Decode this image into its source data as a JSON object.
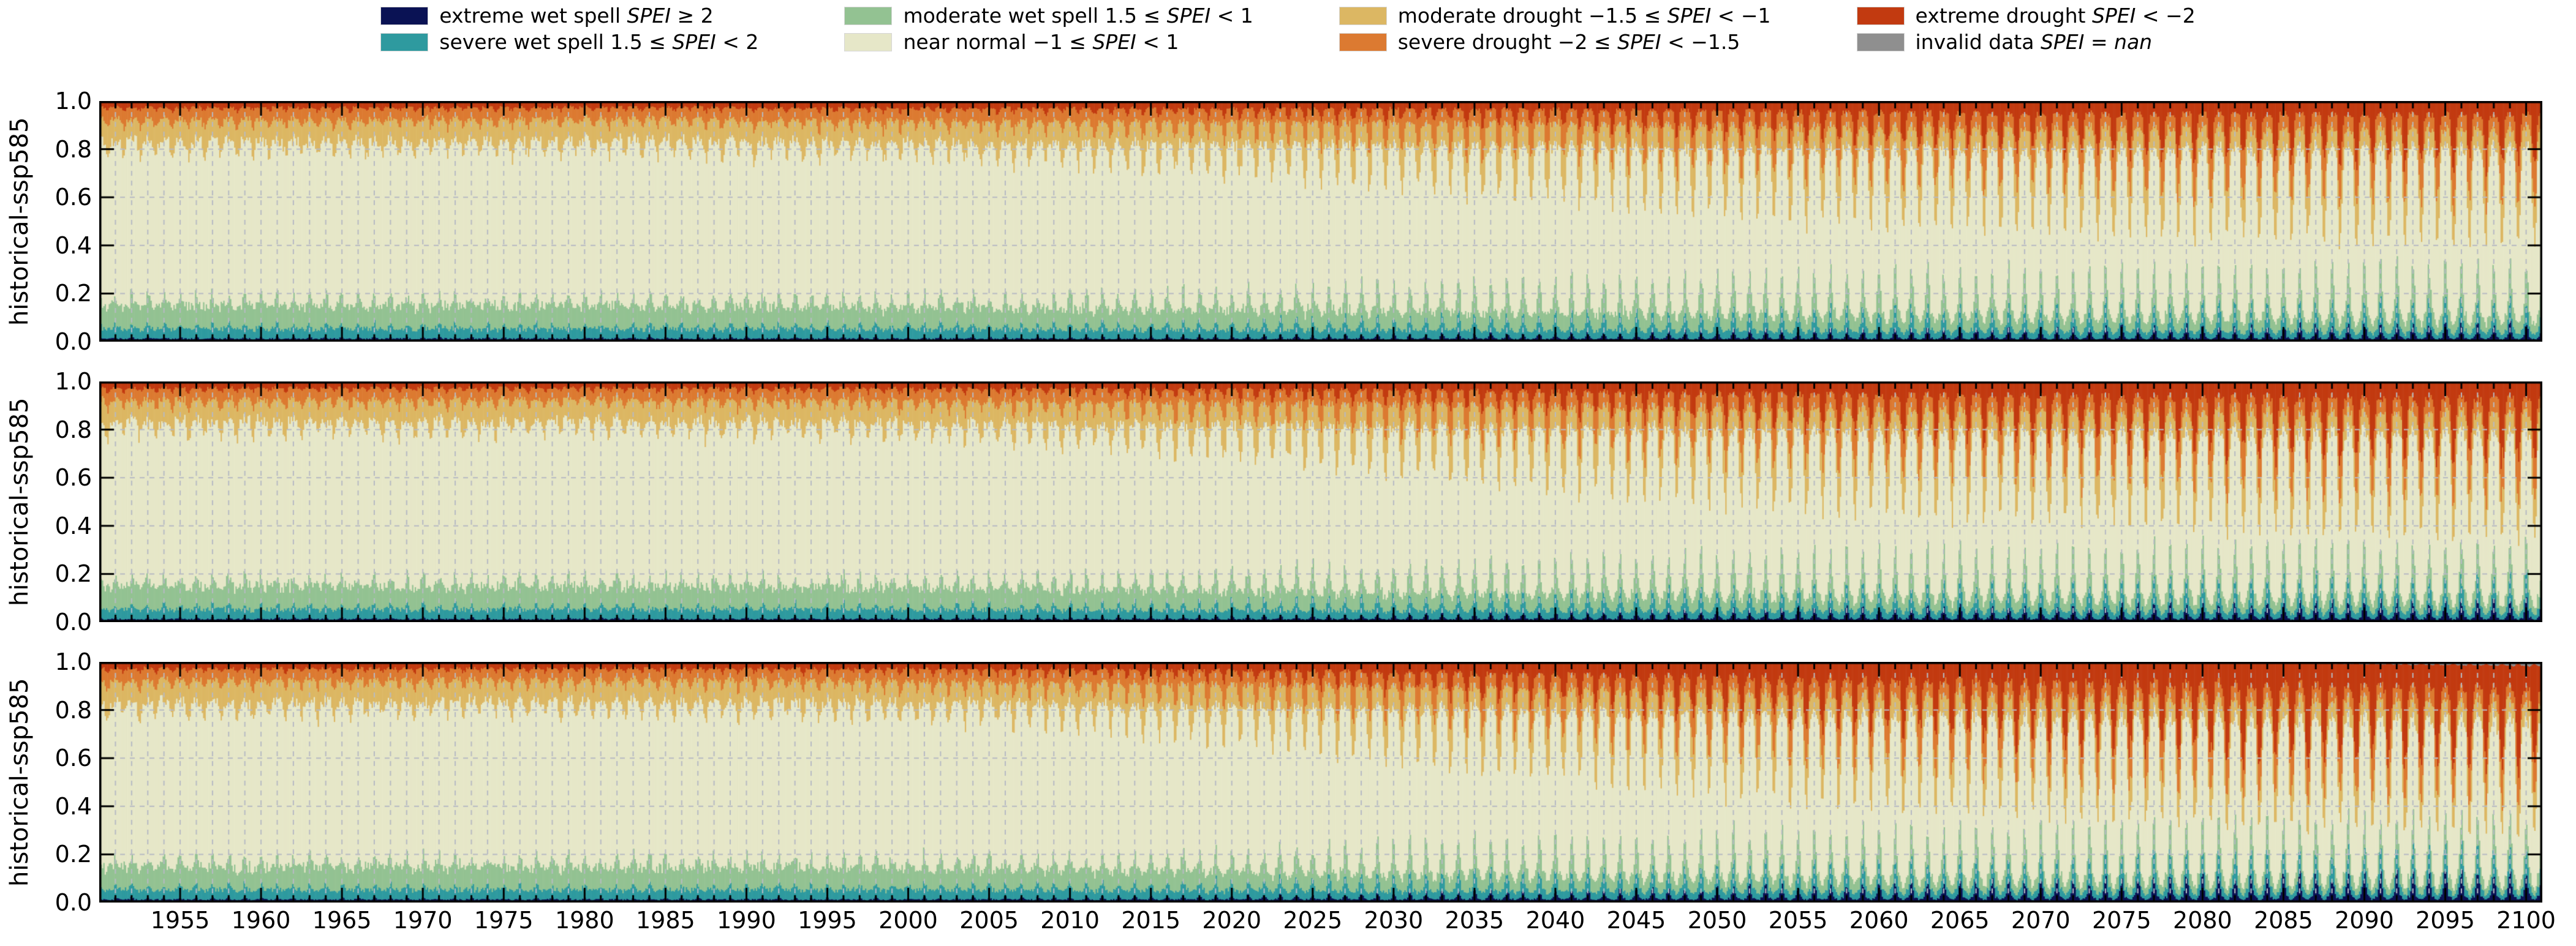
{
  "legend": {
    "items": [
      {
        "id": "extreme-wet-spell",
        "color": "#0a1254",
        "segments": [
          {
            "t": "extreme wet spell "
          },
          {
            "t": "SPEI",
            "i": true
          },
          {
            "t": " ≥ 2"
          }
        ]
      },
      {
        "id": "severe-wet-spell",
        "color": "#2e9a9f",
        "segments": [
          {
            "t": "severe wet spell 1.5 ≤ "
          },
          {
            "t": "SPEI",
            "i": true
          },
          {
            "t": " < 2"
          }
        ]
      },
      {
        "id": "moderate-wet-spell",
        "color": "#93c292",
        "segments": [
          {
            "t": "moderate wet spell 1.5 ≤ "
          },
          {
            "t": "SPEI",
            "i": true
          },
          {
            "t": " < 1"
          }
        ]
      },
      {
        "id": "near-normal",
        "color": "#e6e7c8",
        "segments": [
          {
            "t": "near normal −1 ≤ "
          },
          {
            "t": "SPEI",
            "i": true
          },
          {
            "t": " < 1"
          }
        ]
      },
      {
        "id": "moderate-drought",
        "color": "#dcb763",
        "segments": [
          {
            "t": "moderate drought −1.5 ≤ "
          },
          {
            "t": "SPEI",
            "i": true
          },
          {
            "t": " < −1"
          }
        ]
      },
      {
        "id": "severe-drought",
        "color": "#dc7a31",
        "segments": [
          {
            "t": "severe drought −2 ≤ "
          },
          {
            "t": "SPEI",
            "i": true
          },
          {
            "t": " < −1.5"
          }
        ]
      },
      {
        "id": "extreme-drought",
        "color": "#c23a10",
        "segments": [
          {
            "t": "extreme drought "
          },
          {
            "t": "SPEI",
            "i": true
          },
          {
            "t": " < −2"
          }
        ]
      },
      {
        "id": "invalid-data",
        "color": "#8f8f8f",
        "segments": [
          {
            "t": "invalid data "
          },
          {
            "t": "SPEI",
            "i": true
          },
          {
            "t": " = "
          },
          {
            "t": "nan",
            "i": true
          }
        ]
      }
    ]
  },
  "axes": {
    "ylabel": "historical-ssp585",
    "ytick_labels": [
      "0.0",
      "0.2",
      "0.4",
      "0.6",
      "0.8",
      "1.0"
    ],
    "xtick_labels": [
      "1955",
      "1960",
      "1965",
      "1970",
      "1975",
      "1980",
      "1985",
      "1990",
      "1995",
      "2000",
      "2005",
      "2010",
      "2015",
      "2020",
      "2025",
      "2030",
      "2035",
      "2040",
      "2045",
      "2050",
      "2055",
      "2060",
      "2065",
      "2070",
      "2075",
      "2080",
      "2085",
      "2090",
      "2095",
      "2100"
    ],
    "x_range": [
      1950,
      2101
    ],
    "y_range": [
      0,
      1
    ],
    "grid_color": "#b7bac3",
    "spine_color": "#000000"
  },
  "chart_data": {
    "type": "area",
    "stacked": true,
    "normalized": true,
    "x_unit": "year",
    "samples_per_year": 12,
    "grid": "on",
    "legend_position": "top",
    "categories": [
      {
        "name": "extreme wet spell",
        "color": "#0a1254"
      },
      {
        "name": "severe wet spell",
        "color": "#2e9a9f"
      },
      {
        "name": "moderate wet spell",
        "color": "#93c292"
      },
      {
        "name": "near normal",
        "color": "#e6e7c8"
      },
      {
        "name": "moderate drought",
        "color": "#dcb763"
      },
      {
        "name": "severe drought",
        "color": "#dc7a31"
      },
      {
        "name": "extreme drought",
        "color": "#c23a10"
      },
      {
        "name": "invalid data",
        "color": "#8f8f8f"
      }
    ],
    "keyframe_years": [
      1950,
      1980,
      2000,
      2010,
      2020,
      2030,
      2040,
      2050,
      2060,
      2070,
      2080,
      2090,
      2100
    ],
    "panels": [
      {
        "label": "historical-ssp585",
        "seasonal_amplitude": [
          0.22,
          0.22,
          0.25,
          0.3,
          0.4,
          0.52,
          0.62,
          0.7,
          0.76,
          0.8,
          0.84,
          0.87,
          0.9
        ],
        "series": [
          {
            "name": "extreme wet spell",
            "values": [
              0.015,
              0.015,
              0.015,
              0.015,
              0.016,
              0.018,
              0.02,
              0.022,
              0.024,
              0.026,
              0.028,
              0.03,
              0.032
            ]
          },
          {
            "name": "severe wet spell",
            "values": [
              0.045,
              0.045,
              0.045,
              0.045,
              0.046,
              0.048,
              0.05,
              0.05,
              0.05,
              0.05,
              0.05,
              0.05,
              0.05
            ]
          },
          {
            "name": "moderate wet spell",
            "values": [
              0.105,
              0.105,
              0.1,
              0.1,
              0.1,
              0.1,
              0.1,
              0.098,
              0.095,
              0.092,
              0.09,
              0.088,
              0.085
            ]
          },
          {
            "name": "near normal",
            "values": [
              0.65,
              0.655,
              0.65,
              0.64,
              0.62,
              0.6,
              0.575,
              0.55,
              0.53,
              0.515,
              0.505,
              0.498,
              0.49
            ]
          },
          {
            "name": "moderate drought",
            "values": [
              0.1,
              0.1,
              0.1,
              0.105,
              0.11,
              0.115,
              0.12,
              0.122,
              0.122,
              0.12,
              0.118,
              0.116,
              0.115
            ]
          },
          {
            "name": "severe drought",
            "values": [
              0.055,
              0.053,
              0.058,
              0.062,
              0.068,
              0.075,
              0.082,
              0.09,
              0.095,
              0.098,
              0.1,
              0.1,
              0.1
            ]
          },
          {
            "name": "extreme drought",
            "values": [
              0.03,
              0.027,
              0.032,
              0.033,
              0.04,
              0.044,
              0.053,
              0.068,
              0.084,
              0.099,
              0.109,
              0.118,
              0.128
            ]
          },
          {
            "name": "invalid data",
            "values": [
              0,
              0,
              0,
              0,
              0,
              0,
              0,
              0,
              0,
              0,
              0,
              0,
              0
            ]
          }
        ]
      },
      {
        "label": "historical-ssp585",
        "seasonal_amplitude": [
          0.22,
          0.22,
          0.25,
          0.31,
          0.42,
          0.55,
          0.65,
          0.73,
          0.79,
          0.83,
          0.87,
          0.9,
          0.92
        ],
        "series": [
          {
            "name": "extreme wet spell",
            "values": [
              0.015,
              0.015,
              0.015,
              0.015,
              0.017,
              0.019,
              0.022,
              0.025,
              0.028,
              0.03,
              0.032,
              0.034,
              0.035
            ]
          },
          {
            "name": "severe wet spell",
            "values": [
              0.045,
              0.045,
              0.045,
              0.045,
              0.046,
              0.048,
              0.05,
              0.051,
              0.052,
              0.052,
              0.052,
              0.052,
              0.052
            ]
          },
          {
            "name": "moderate wet spell",
            "values": [
              0.105,
              0.103,
              0.1,
              0.1,
              0.098,
              0.096,
              0.094,
              0.092,
              0.09,
              0.087,
              0.084,
              0.082,
              0.08
            ]
          },
          {
            "name": "near normal",
            "values": [
              0.65,
              0.657,
              0.65,
              0.638,
              0.615,
              0.59,
              0.56,
              0.532,
              0.51,
              0.492,
              0.478,
              0.465,
              0.455
            ]
          },
          {
            "name": "moderate drought",
            "values": [
              0.1,
              0.1,
              0.102,
              0.106,
              0.112,
              0.118,
              0.122,
              0.122,
              0.12,
              0.118,
              0.117,
              0.116,
              0.115
            ]
          },
          {
            "name": "severe drought",
            "values": [
              0.055,
              0.052,
              0.056,
              0.062,
              0.07,
              0.078,
              0.086,
              0.092,
              0.096,
              0.098,
              0.098,
              0.098,
              0.098
            ]
          },
          {
            "name": "extreme drought",
            "values": [
              0.03,
              0.028,
              0.032,
              0.034,
              0.042,
              0.051,
              0.066,
              0.086,
              0.104,
              0.123,
              0.139,
              0.153,
              0.165
            ]
          },
          {
            "name": "invalid data",
            "values": [
              0,
              0,
              0,
              0,
              0,
              0,
              0,
              0,
              0,
              0,
              0,
              0,
              0
            ]
          }
        ]
      },
      {
        "label": "historical-ssp585",
        "seasonal_amplitude": [
          0.22,
          0.22,
          0.26,
          0.32,
          0.44,
          0.58,
          0.68,
          0.76,
          0.82,
          0.86,
          0.9,
          0.93,
          0.95
        ],
        "series": [
          {
            "name": "extreme wet spell",
            "values": [
              0.015,
              0.015,
              0.015,
              0.016,
              0.018,
              0.021,
              0.025,
              0.029,
              0.033,
              0.037,
              0.041,
              0.045,
              0.048
            ]
          },
          {
            "name": "severe wet spell",
            "values": [
              0.045,
              0.045,
              0.045,
              0.045,
              0.046,
              0.048,
              0.05,
              0.05,
              0.05,
              0.05,
              0.05,
              0.05,
              0.05
            ]
          },
          {
            "name": "moderate wet spell",
            "values": [
              0.105,
              0.104,
              0.1,
              0.098,
              0.095,
              0.092,
              0.088,
              0.084,
              0.08,
              0.076,
              0.073,
              0.071,
              0.07
            ]
          },
          {
            "name": "near normal",
            "values": [
              0.65,
              0.656,
              0.65,
              0.636,
              0.61,
              0.58,
              0.545,
              0.51,
              0.48,
              0.455,
              0.435,
              0.415,
              0.4
            ]
          },
          {
            "name": "moderate drought",
            "values": [
              0.1,
              0.1,
              0.102,
              0.106,
              0.112,
              0.116,
              0.118,
              0.117,
              0.114,
              0.111,
              0.108,
              0.106,
              0.105
            ]
          },
          {
            "name": "severe drought",
            "values": [
              0.055,
              0.052,
              0.056,
              0.063,
              0.072,
              0.08,
              0.088,
              0.093,
              0.095,
              0.096,
              0.096,
              0.095,
              0.095
            ]
          },
          {
            "name": "extreme drought",
            "values": [
              0.03,
              0.028,
              0.032,
              0.036,
              0.047,
              0.063,
              0.086,
              0.117,
              0.148,
              0.175,
              0.196,
              0.211,
              0.22
            ]
          },
          {
            "name": "invalid data",
            "values": [
              0,
              0,
              0,
              0,
              0,
              0,
              0,
              0,
              0,
              0,
              0.001,
              0.007,
              0.012
            ]
          }
        ]
      }
    ]
  }
}
